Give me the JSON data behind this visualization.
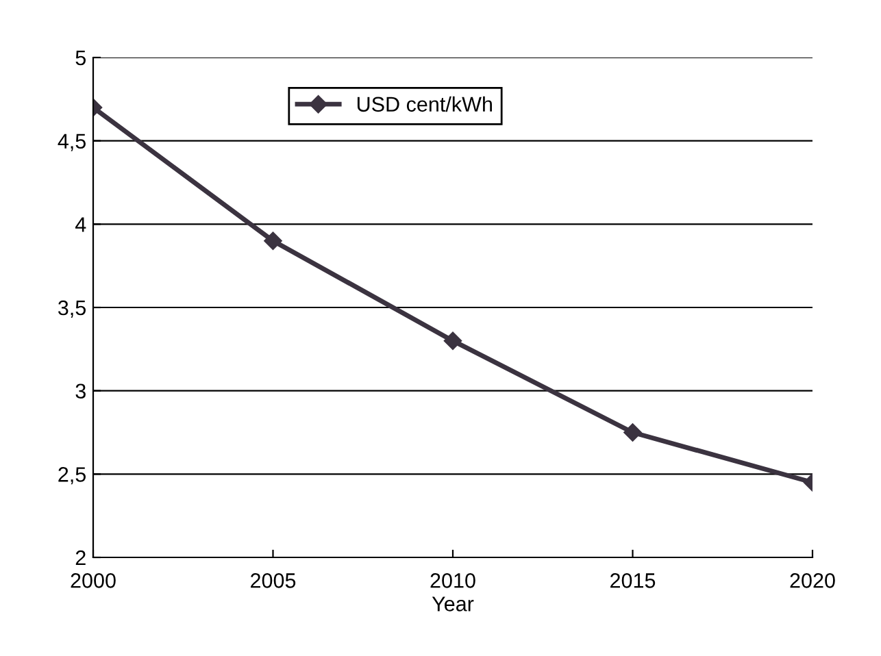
{
  "chart_data": {
    "type": "line",
    "xlabel": "Year",
    "x": [
      2000,
      2005,
      2010,
      2015,
      2020
    ],
    "series": [
      {
        "name": "USD cent/kWh",
        "color": "#3b3340",
        "values": [
          4.7,
          3.9,
          3.3,
          2.75,
          2.45
        ]
      }
    ],
    "xlim": [
      2000,
      2020
    ],
    "xticks": [
      2000,
      2005,
      2010,
      2015,
      2020
    ],
    "ylim": [
      2,
      5
    ],
    "yticks": [
      2,
      {
        "value": 2.5,
        "label": "2,5"
      },
      3,
      {
        "value": 3.5,
        "label": "3,5"
      },
      4,
      {
        "value": 4.5,
        "label": "4,5"
      },
      5
    ],
    "grid": "y",
    "legend": "top",
    "marker": "diamond",
    "line_style": "solid"
  }
}
